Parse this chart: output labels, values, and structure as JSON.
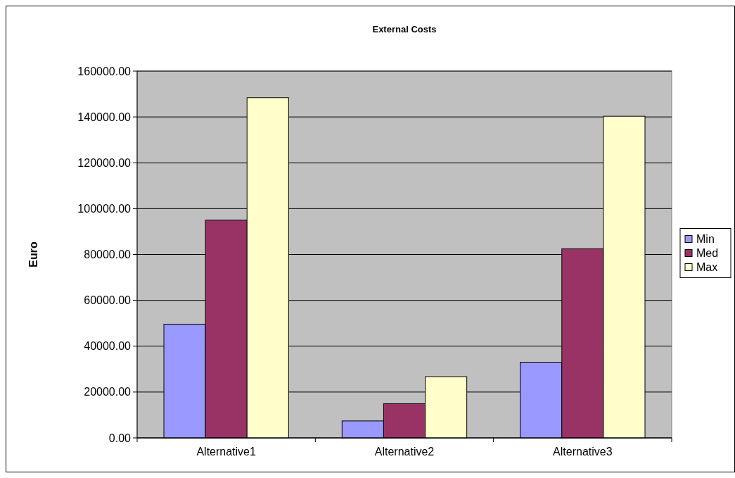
{
  "chart_data": {
    "type": "bar",
    "title": "External Costs",
    "ylabel": "Euro",
    "categories": [
      "Alternative1",
      "Alternative2",
      "Alternative3"
    ],
    "series": [
      {
        "name": "Min",
        "color": "#9999ff",
        "values": [
          49600,
          7400,
          33000
        ]
      },
      {
        "name": "Med",
        "color": "#993366",
        "values": [
          95000,
          14900,
          82500
        ]
      },
      {
        "name": "Max",
        "color": "#ffffcc",
        "values": [
          148400,
          26700,
          140300
        ]
      }
    ],
    "ylim": [
      0,
      160000
    ],
    "yticks": [
      {
        "value": 0,
        "label": "0.00"
      },
      {
        "value": 20000,
        "label": "20000.00"
      },
      {
        "value": 40000,
        "label": "40000.00"
      },
      {
        "value": 60000,
        "label": "60000.00"
      },
      {
        "value": 80000,
        "label": "80000.00"
      },
      {
        "value": 100000,
        "label": "100000.00"
      },
      {
        "value": 120000,
        "label": "120000.00"
      },
      {
        "value": 140000,
        "label": "140000.00"
      },
      {
        "value": 160000,
        "label": "160000.00"
      }
    ],
    "grid": "y",
    "legend": "right"
  }
}
